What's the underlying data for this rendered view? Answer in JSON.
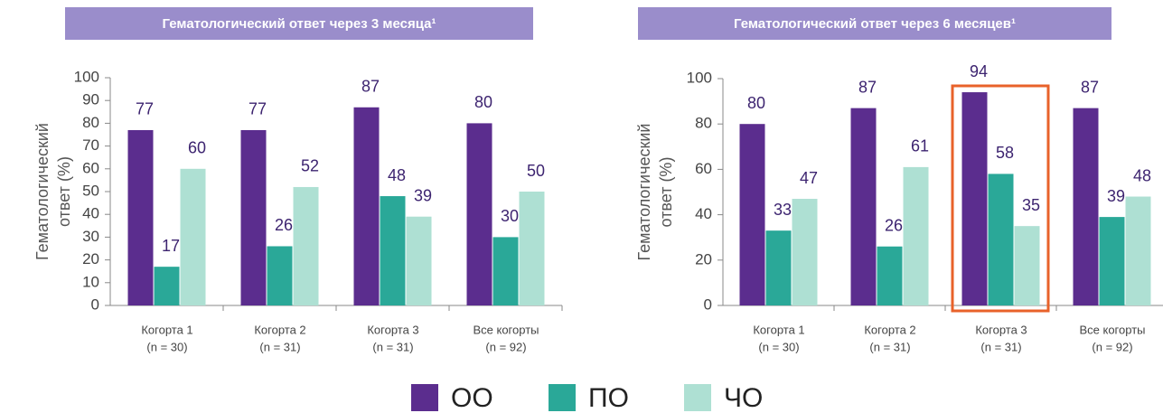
{
  "chart_data": [
    {
      "type": "bar",
      "title": "Гематологический ответ через 3 месяца¹",
      "ylabel": [
        "Гематологический",
        "ответ (%)"
      ],
      "categories": [
        [
          "Когорта 1",
          "(n = 30)"
        ],
        [
          "Когорта 2",
          "(n = 31)"
        ],
        [
          "Когорта 3",
          "(n = 31)"
        ],
        [
          "Все когорты",
          "(n = 92)"
        ]
      ],
      "series": [
        {
          "name": "ОО",
          "color": "#5b2d8e",
          "values": [
            77,
            77,
            87,
            80
          ]
        },
        {
          "name": "ПО",
          "color": "#2aa898",
          "values": [
            17,
            26,
            48,
            30
          ]
        },
        {
          "name": "ЧО",
          "color": "#aee0d3",
          "values": [
            60,
            52,
            39,
            50
          ]
        }
      ],
      "ylim": [
        0,
        100
      ],
      "yticks": [
        0,
        10,
        20,
        30,
        40,
        50,
        60,
        70,
        80,
        90,
        100
      ]
    },
    {
      "type": "bar",
      "title": "Гематологический ответ через 6 месяцев¹",
      "ylabel": [
        "Гематологический",
        "ответ (%)"
      ],
      "categories": [
        [
          "Когорта 1",
          "(n = 30)"
        ],
        [
          "Когорта 2",
          "(n = 31)"
        ],
        [
          "Когорта 3",
          "(n = 31)"
        ],
        [
          "Все когорты",
          "(n = 92)"
        ]
      ],
      "series": [
        {
          "color": "#5b2d8e",
          "values": [
            80,
            87,
            94,
            87
          ]
        },
        {
          "color": "#2aa898",
          "values": [
            33,
            26,
            58,
            39
          ]
        },
        {
          "color": "#aee0d3",
          "values": [
            47,
            61,
            35,
            48
          ]
        }
      ],
      "ylim": [
        0,
        100
      ],
      "yticks": [
        0,
        20,
        40,
        60,
        80,
        100
      ],
      "highlight_category": 2,
      "highlight_color": "#e8622a"
    }
  ]
}
